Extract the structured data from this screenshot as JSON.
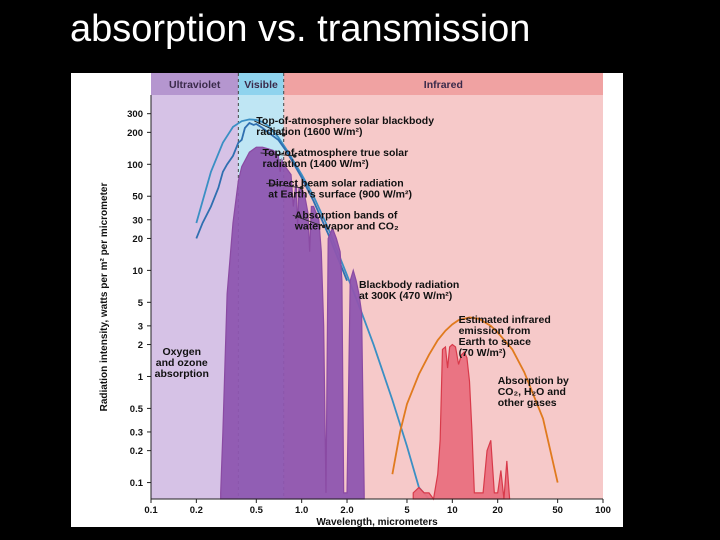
{
  "slide": {
    "title": "absorption vs. transmission"
  },
  "chart_data": {
    "type": "area",
    "xlabel": "Wavelength, micrometers",
    "ylabel": "Radiation intensity, watts per m² per micrometer",
    "xscale": "log",
    "yscale": "log",
    "xlim": [
      0.1,
      100
    ],
    "ylim": [
      0.07,
      450
    ],
    "x_ticks": [
      {
        "v": 0.1,
        "label": "0.1"
      },
      {
        "v": 0.2,
        "label": "0.2"
      },
      {
        "v": 0.5,
        "label": "0.5"
      },
      {
        "v": 1.0,
        "label": "1.0"
      },
      {
        "v": 2.0,
        "label": "2.0"
      },
      {
        "v": 5,
        "label": "5"
      },
      {
        "v": 10,
        "label": "10"
      },
      {
        "v": 20,
        "label": "20"
      },
      {
        "v": 50,
        "label": "50"
      },
      {
        "v": 100,
        "label": "100"
      }
    ],
    "y_ticks": [
      {
        "v": 300,
        "label": "300"
      },
      {
        "v": 200,
        "label": "200"
      },
      {
        "v": 100,
        "label": "100"
      },
      {
        "v": 50,
        "label": "50"
      },
      {
        "v": 30,
        "label": "30"
      },
      {
        "v": 20,
        "label": "20"
      },
      {
        "v": 10,
        "label": "10"
      },
      {
        "v": 5,
        "label": "5"
      },
      {
        "v": 3,
        "label": "3"
      },
      {
        "v": 2,
        "label": "2"
      },
      {
        "v": 1,
        "label": "1"
      },
      {
        "v": 0.5,
        "label": "0.5"
      },
      {
        "v": 0.3,
        "label": "0.3"
      },
      {
        "v": 0.2,
        "label": "0.2"
      },
      {
        "v": 0.1,
        "label": "0.1"
      }
    ],
    "bands": [
      {
        "name": "Ultraviolet",
        "from": 0.1,
        "to": 0.38,
        "color": "#d6c2e6"
      },
      {
        "name": "Visible",
        "from": 0.38,
        "to": 0.76,
        "color": "#bfe6f4"
      },
      {
        "name": "Infrared",
        "from": 0.76,
        "to": 100,
        "color": "#f6c9c9"
      }
    ],
    "band_header_colors": {
      "Ultraviolet": "#b596cf",
      "Visible": "#8fd3ee",
      "Infrared": "#f0a2a2"
    },
    "series": [
      {
        "color": "#3a8fc4",
        "style": "line",
        "x": [
          0.2,
          0.25,
          0.3,
          0.35,
          0.4,
          0.45,
          0.5,
          0.55,
          0.6,
          0.7,
          0.8,
          1.0,
          1.2,
          1.5,
          2.0,
          2.5,
          3.0,
          4.0,
          5.0,
          6.0,
          7.0
        ],
        "y": [
          28,
          85,
          160,
          225,
          255,
          265,
          262,
          250,
          230,
          180,
          135,
          80,
          50,
          25,
          9,
          4,
          2,
          0.6,
          0.22,
          0.09,
          0.04
        ]
      },
      {
        "color": "#2f6fb0",
        "style": "line",
        "x": [
          0.2,
          0.22,
          0.25,
          0.28,
          0.3,
          0.32,
          0.35,
          0.38,
          0.4,
          0.42,
          0.45,
          0.48,
          0.5,
          0.55,
          0.6,
          0.7,
          0.8,
          1.0,
          1.2,
          1.5,
          2.0
        ],
        "y": [
          20,
          28,
          40,
          60,
          85,
          100,
          120,
          160,
          170,
          220,
          245,
          235,
          240,
          220,
          200,
          170,
          130,
          75,
          45,
          22,
          8
        ]
      },
      {
        "color": "#8a4aa3",
        "style": "area",
        "fill": "#8e56b0",
        "x": [
          0.29,
          0.3,
          0.32,
          0.35,
          0.38,
          0.4,
          0.45,
          0.5,
          0.55,
          0.6,
          0.65,
          0.7,
          0.72,
          0.74,
          0.76,
          0.8,
          0.85,
          0.88,
          0.92,
          0.94,
          0.96,
          1.0,
          1.05,
          1.1,
          1.13,
          1.16,
          1.2,
          1.3,
          1.35,
          1.4,
          1.45,
          1.5,
          1.6,
          1.7,
          1.8,
          1.85,
          1.9,
          1.95,
          2.0,
          2.1,
          2.2,
          2.3,
          2.4,
          2.5,
          2.6
        ],
        "y": [
          0.08,
          0.3,
          6,
          28,
          70,
          95,
          130,
          145,
          145,
          140,
          135,
          120,
          85,
          110,
          100,
          90,
          80,
          40,
          70,
          25,
          60,
          60,
          50,
          35,
          15,
          40,
          40,
          30,
          15,
          3,
          0.08,
          20,
          25,
          20,
          15,
          8,
          0.08,
          0.08,
          0.08,
          8,
          10,
          8,
          6,
          4,
          0.08
        ]
      },
      {
        "color": "#e07a1e",
        "style": "line",
        "x": [
          4.0,
          4.5,
          5.0,
          6.0,
          7.0,
          8.0,
          9.0,
          10.0,
          11.0,
          13.0,
          15.0,
          18.0,
          20.0,
          25.0,
          30.0,
          40.0,
          50.0
        ],
        "y": [
          0.12,
          0.3,
          0.55,
          1.05,
          1.6,
          2.2,
          2.7,
          3.1,
          3.4,
          3.6,
          3.5,
          3.0,
          2.6,
          1.8,
          1.1,
          0.4,
          0.1
        ]
      },
      {
        "color": "#d83a4a",
        "style": "area",
        "fill": "#e9707f",
        "x": [
          5.5,
          6.0,
          6.5,
          7.0,
          7.5,
          8.0,
          8.3,
          8.6,
          9.0,
          9.3,
          9.6,
          10.0,
          10.5,
          11.0,
          11.5,
          12.0,
          12.5,
          13.0,
          13.5,
          14.0,
          15.0,
          16.0,
          17.0,
          18.0,
          19.0,
          20.0,
          21.0,
          22.0,
          23.0,
          24.0
        ],
        "y": [
          0.08,
          0.09,
          0.08,
          0.08,
          0.07,
          0.12,
          0.25,
          1.8,
          1.9,
          1.2,
          1.9,
          2.0,
          1.9,
          1.3,
          1.6,
          1.7,
          1.5,
          0.9,
          0.3,
          0.08,
          0.08,
          0.08,
          0.2,
          0.25,
          0.08,
          0.08,
          0.13,
          0.07,
          0.16,
          0.07
        ]
      }
    ],
    "annotations": [
      {
        "lines": [
          "Top-of-atmosphere solar blackbody",
          "radiation (1600 W/m²)"
        ],
        "text_at": [
          0.5,
          240
        ],
        "point_to": [
          0.76,
          190
        ]
      },
      {
        "lines": [
          "Top-of-atmosphere true solar",
          "radiation (1400 W/m²)"
        ],
        "text_at": [
          0.55,
          120
        ],
        "point_to": [
          0.9,
          120
        ]
      },
      {
        "lines": [
          "Direct beam solar radiation",
          "at Earth’s surface (900 W/m²)"
        ],
        "text_at": [
          0.6,
          62
        ],
        "point_to": [
          1.0,
          60
        ]
      },
      {
        "lines": [
          "Absorption bands of",
          "water vapor and CO₂"
        ],
        "text_at": [
          0.9,
          31
        ],
        "point_to": [
          1.4,
          26
        ]
      },
      {
        "lines": [
          "Blackbody radiation",
          "at 300K (470 W/m²)"
        ],
        "text_at": [
          2.4,
          6.8
        ],
        "point_to": [],
        "align": "left"
      },
      {
        "lines": [
          "Estimated infrared",
          "emission from",
          "Earth to space",
          "(70 W/m²)"
        ],
        "text_at": [
          11.0,
          3.2
        ],
        "point_to": [],
        "align": "left"
      },
      {
        "lines": [
          "Absorption by",
          "CO₂, H₂O and",
          "other gases"
        ],
        "text_at": [
          20.0,
          0.85
        ],
        "point_to": [],
        "align": "left"
      },
      {
        "lines": [
          "Oxygen",
          "and ozone",
          "absorption"
        ],
        "text_at": [
          0.16,
          1.6
        ],
        "point_to": [],
        "align": "center"
      }
    ]
  }
}
